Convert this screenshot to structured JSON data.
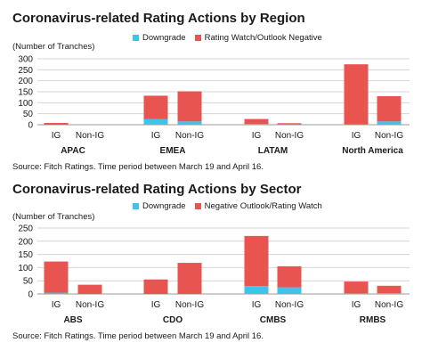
{
  "colors": {
    "downgrade": "#3ec3ea",
    "watch": "#e85450",
    "grid": "#d4d4d4",
    "axis": "#9a9a9a"
  },
  "chart_data": [
    {
      "type": "bar",
      "stacked": true,
      "title": "Coronavirus-related Rating Actions by Region",
      "ylabel": "(Number of Tranches)",
      "ylim": [
        0,
        300
      ],
      "yticks": [
        0,
        50,
        100,
        150,
        200,
        250,
        300
      ],
      "grid": true,
      "legend_position": "top-right",
      "source": "Source: Fitch Ratings. Time period between March 19 and April 16.",
      "groups": [
        "APAC",
        "EMEA",
        "LATAM",
        "North America"
      ],
      "categories": [
        "IG",
        "Non-IG"
      ],
      "series": [
        {
          "name": "Downgrade",
          "values": [
            [
              0,
              0
            ],
            [
              25,
              15
            ],
            [
              3,
              2
            ],
            [
              2,
              15
            ]
          ]
        },
        {
          "name": "Rating Watch/Outlook Negative",
          "values": [
            [
              8,
              0
            ],
            [
              107,
              137
            ],
            [
              23,
              5
            ],
            [
              273,
              115
            ]
          ]
        }
      ]
    },
    {
      "type": "bar",
      "stacked": true,
      "title": "Coronavirus-related Rating Actions by Sector",
      "ylabel": "(Number of Tranches)",
      "ylim": [
        0,
        250
      ],
      "yticks": [
        0,
        50,
        100,
        150,
        200,
        250
      ],
      "grid": true,
      "legend_position": "top-right",
      "source": "Source: Fitch Ratings. Time period between March 19 and April 16.",
      "groups": [
        "ABS",
        "CDO",
        "CMBS",
        "RMBS"
      ],
      "categories": [
        "IG",
        "Non-IG"
      ],
      "series": [
        {
          "name": "Downgrade",
          "values": [
            [
              5,
              0
            ],
            [
              0,
              0
            ],
            [
              30,
              25
            ],
            [
              2,
              3
            ]
          ]
        },
        {
          "name": "Negative Outlook/Rating Watch",
          "values": [
            [
              118,
              35
            ],
            [
              55,
              118
            ],
            [
              190,
              80
            ],
            [
              45,
              28
            ]
          ]
        }
      ]
    }
  ]
}
